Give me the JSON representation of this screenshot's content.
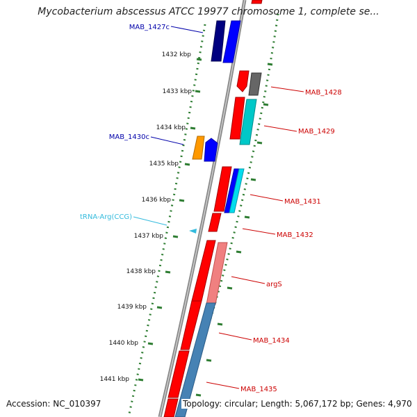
{
  "title": "Mycobacterium abscessus ATCC 19977 chromosome 1, complete se...",
  "footer": {
    "accession": "Accession: NC_010397",
    "topology": "Topology: circular; Length: 5,067,172 bp; Genes: 4,970"
  },
  "kbp_ticks": [
    "1432 kbp",
    "1433 kbp",
    "1434 kbp",
    "1435 kbp",
    "1436 kbp",
    "1437 kbp",
    "1438 kbp",
    "1439 kbp",
    "1440 kbp",
    "1441 kbp"
  ],
  "features": [
    {
      "name": "MAB_1427c",
      "color": "#0000aa"
    },
    {
      "name": "MAB_1428",
      "color": "#cc0000"
    },
    {
      "name": "MAB_1429",
      "color": "#cc0000"
    },
    {
      "name": "MAB_1430c",
      "color": "#0000aa"
    },
    {
      "name": "MAB_1431",
      "color": "#cc0000"
    },
    {
      "name": "tRNA-Arg(CCG)",
      "color": "#33bbdd"
    },
    {
      "name": "MAB_1432",
      "color": "#cc0000"
    },
    {
      "name": "argS",
      "color": "#cc0000"
    },
    {
      "name": "MAB_1434",
      "color": "#cc0000"
    },
    {
      "name": "MAB_1435",
      "color": "#cc0000"
    }
  ],
  "colors": {
    "backbone": "#888888",
    "tick_ring": "#2e7d32",
    "gene_red": "#ff0000",
    "gene_blue": "#0000ff",
    "gene_navy": "#000080",
    "gene_cyan": "#00c8c8",
    "gene_orange": "#ff9900",
    "gene_gray": "#666666",
    "gene_pink": "#f08080",
    "gene_steel": "#4682b4"
  }
}
